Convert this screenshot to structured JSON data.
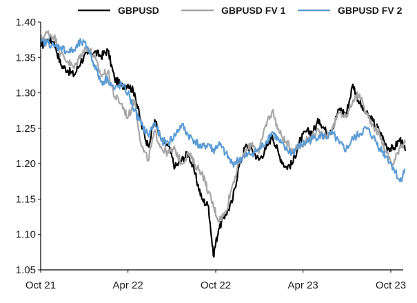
{
  "chart_data": {
    "type": "line",
    "title": "",
    "xlabel": "",
    "ylabel": "",
    "ylim": [
      1.05,
      1.4
    ],
    "yticks": [
      "1.05",
      "1.10",
      "1.15",
      "1.20",
      "1.25",
      "1.30",
      "1.35",
      "1.40"
    ],
    "xtick_labels": [
      "Oct 21",
      "Apr 22",
      "Oct 22",
      "Apr 23",
      "Oct 23"
    ],
    "x_range": [
      "2021-10",
      "2023-10"
    ],
    "grid": false,
    "legend_position": "top",
    "series": [
      {
        "name": "GBPUSD",
        "color": "#000000",
        "points": [
          [
            "2021-10-01",
            1.365
          ],
          [
            "2021-10-15",
            1.375
          ],
          [
            "2021-10-29",
            1.372
          ],
          [
            "2021-11-12",
            1.34
          ],
          [
            "2021-11-26",
            1.332
          ],
          [
            "2021-12-10",
            1.325
          ],
          [
            "2021-12-24",
            1.345
          ],
          [
            "2022-01-07",
            1.355
          ],
          [
            "2022-01-21",
            1.358
          ],
          [
            "2022-02-04",
            1.352
          ],
          [
            "2022-02-18",
            1.36
          ],
          [
            "2022-03-04",
            1.32
          ],
          [
            "2022-03-18",
            1.31
          ],
          [
            "2022-04-01",
            1.312
          ],
          [
            "2022-04-15",
            1.3
          ],
          [
            "2022-04-29",
            1.255
          ],
          [
            "2022-05-13",
            1.225
          ],
          [
            "2022-05-27",
            1.262
          ],
          [
            "2022-06-10",
            1.232
          ],
          [
            "2022-06-24",
            1.225
          ],
          [
            "2022-07-08",
            1.195
          ],
          [
            "2022-07-22",
            1.205
          ],
          [
            "2022-08-05",
            1.215
          ],
          [
            "2022-08-19",
            1.185
          ],
          [
            "2022-09-02",
            1.15
          ],
          [
            "2022-09-16",
            1.14
          ],
          [
            "2022-09-26",
            1.07
          ],
          [
            "2022-10-07",
            1.108
          ],
          [
            "2022-10-21",
            1.128
          ],
          [
            "2022-11-04",
            1.145
          ],
          [
            "2022-11-18",
            1.195
          ],
          [
            "2022-12-02",
            1.225
          ],
          [
            "2022-12-16",
            1.22
          ],
          [
            "2022-12-30",
            1.205
          ],
          [
            "2023-01-13",
            1.22
          ],
          [
            "2023-01-27",
            1.24
          ],
          [
            "2023-02-10",
            1.212
          ],
          [
            "2023-02-24",
            1.195
          ],
          [
            "2023-03-10",
            1.2
          ],
          [
            "2023-03-24",
            1.23
          ],
          [
            "2023-04-07",
            1.245
          ],
          [
            "2023-04-21",
            1.245
          ],
          [
            "2023-05-05",
            1.262
          ],
          [
            "2023-05-19",
            1.245
          ],
          [
            "2023-06-02",
            1.252
          ],
          [
            "2023-06-16",
            1.278
          ],
          [
            "2023-06-30",
            1.27
          ],
          [
            "2023-07-14",
            1.312
          ],
          [
            "2023-07-28",
            1.285
          ],
          [
            "2023-08-11",
            1.27
          ],
          [
            "2023-08-25",
            1.26
          ],
          [
            "2023-09-08",
            1.245
          ],
          [
            "2023-09-22",
            1.225
          ],
          [
            "2023-10-06",
            1.22
          ],
          [
            "2023-10-20",
            1.235
          ],
          [
            "2023-10-31",
            1.218
          ]
        ]
      },
      {
        "name": "GBPUSD FV 1",
        "color": "#a6a6a6",
        "points": [
          [
            "2021-10-01",
            1.375
          ],
          [
            "2021-10-15",
            1.385
          ],
          [
            "2021-10-29",
            1.38
          ],
          [
            "2021-11-12",
            1.355
          ],
          [
            "2021-11-26",
            1.345
          ],
          [
            "2021-12-10",
            1.335
          ],
          [
            "2021-12-24",
            1.355
          ],
          [
            "2022-01-07",
            1.365
          ],
          [
            "2022-01-21",
            1.35
          ],
          [
            "2022-02-04",
            1.325
          ],
          [
            "2022-02-18",
            1.33
          ],
          [
            "2022-03-04",
            1.295
          ],
          [
            "2022-03-18",
            1.285
          ],
          [
            "2022-04-01",
            1.265
          ],
          [
            "2022-04-15",
            1.29
          ],
          [
            "2022-04-29",
            1.225
          ],
          [
            "2022-05-13",
            1.205
          ],
          [
            "2022-05-27",
            1.245
          ],
          [
            "2022-06-10",
            1.222
          ],
          [
            "2022-06-24",
            1.215
          ],
          [
            "2022-07-08",
            1.22
          ],
          [
            "2022-07-22",
            1.2
          ],
          [
            "2022-08-05",
            1.215
          ],
          [
            "2022-08-19",
            1.198
          ],
          [
            "2022-09-02",
            1.188
          ],
          [
            "2022-09-16",
            1.16
          ],
          [
            "2022-09-26",
            1.14
          ],
          [
            "2022-10-07",
            1.12
          ],
          [
            "2022-10-21",
            1.13
          ],
          [
            "2022-11-04",
            1.168
          ],
          [
            "2022-11-18",
            1.2
          ],
          [
            "2022-12-02",
            1.215
          ],
          [
            "2022-12-16",
            1.23
          ],
          [
            "2022-12-30",
            1.215
          ],
          [
            "2023-01-13",
            1.255
          ],
          [
            "2023-01-27",
            1.275
          ],
          [
            "2023-02-10",
            1.245
          ],
          [
            "2023-02-24",
            1.23
          ],
          [
            "2023-03-10",
            1.22
          ],
          [
            "2023-03-24",
            1.225
          ],
          [
            "2023-04-07",
            1.232
          ],
          [
            "2023-04-21",
            1.24
          ],
          [
            "2023-05-05",
            1.245
          ],
          [
            "2023-05-19",
            1.238
          ],
          [
            "2023-06-02",
            1.25
          ],
          [
            "2023-06-16",
            1.272
          ],
          [
            "2023-06-30",
            1.265
          ],
          [
            "2023-07-14",
            1.29
          ],
          [
            "2023-07-28",
            1.298
          ],
          [
            "2023-08-11",
            1.27
          ],
          [
            "2023-08-25",
            1.255
          ],
          [
            "2023-09-08",
            1.24
          ],
          [
            "2023-09-22",
            1.215
          ],
          [
            "2023-10-06",
            1.198
          ],
          [
            "2023-10-20",
            1.225
          ],
          [
            "2023-10-31",
            1.23
          ]
        ]
      },
      {
        "name": "GBPUSD FV 2",
        "color": "#5b9bd5",
        "points": [
          [
            "2021-10-01",
            1.37
          ],
          [
            "2021-10-15",
            1.372
          ],
          [
            "2021-10-29",
            1.365
          ],
          [
            "2021-11-12",
            1.365
          ],
          [
            "2021-11-26",
            1.358
          ],
          [
            "2021-12-10",
            1.36
          ],
          [
            "2021-12-24",
            1.372
          ],
          [
            "2022-01-07",
            1.365
          ],
          [
            "2022-01-21",
            1.34
          ],
          [
            "2022-02-04",
            1.315
          ],
          [
            "2022-02-18",
            1.32
          ],
          [
            "2022-03-04",
            1.305
          ],
          [
            "2022-03-18",
            1.312
          ],
          [
            "2022-04-01",
            1.3
          ],
          [
            "2022-04-15",
            1.275
          ],
          [
            "2022-04-29",
            1.255
          ],
          [
            "2022-05-13",
            1.24
          ],
          [
            "2022-05-27",
            1.258
          ],
          [
            "2022-06-10",
            1.232
          ],
          [
            "2022-06-24",
            1.23
          ],
          [
            "2022-07-08",
            1.24
          ],
          [
            "2022-07-22",
            1.255
          ],
          [
            "2022-08-05",
            1.24
          ],
          [
            "2022-08-19",
            1.232
          ],
          [
            "2022-09-02",
            1.222
          ],
          [
            "2022-09-16",
            1.228
          ],
          [
            "2022-09-26",
            1.218
          ],
          [
            "2022-10-07",
            1.228
          ],
          [
            "2022-10-21",
            1.215
          ],
          [
            "2022-11-04",
            1.2
          ],
          [
            "2022-11-18",
            1.205
          ],
          [
            "2022-12-02",
            1.21
          ],
          [
            "2022-12-16",
            1.215
          ],
          [
            "2022-12-30",
            1.22
          ],
          [
            "2023-01-13",
            1.23
          ],
          [
            "2023-01-27",
            1.245
          ],
          [
            "2023-02-10",
            1.232
          ],
          [
            "2023-02-24",
            1.22
          ],
          [
            "2023-03-10",
            1.215
          ],
          [
            "2023-03-24",
            1.225
          ],
          [
            "2023-04-07",
            1.23
          ],
          [
            "2023-04-21",
            1.235
          ],
          [
            "2023-05-05",
            1.24
          ],
          [
            "2023-05-19",
            1.238
          ],
          [
            "2023-06-02",
            1.242
          ],
          [
            "2023-06-16",
            1.228
          ],
          [
            "2023-06-30",
            1.22
          ],
          [
            "2023-07-14",
            1.235
          ],
          [
            "2023-07-28",
            1.242
          ],
          [
            "2023-08-11",
            1.25
          ],
          [
            "2023-08-25",
            1.238
          ],
          [
            "2023-09-08",
            1.222
          ],
          [
            "2023-09-22",
            1.21
          ],
          [
            "2023-10-06",
            1.195
          ],
          [
            "2023-10-20",
            1.175
          ],
          [
            "2023-10-31",
            1.192
          ]
        ]
      }
    ]
  }
}
